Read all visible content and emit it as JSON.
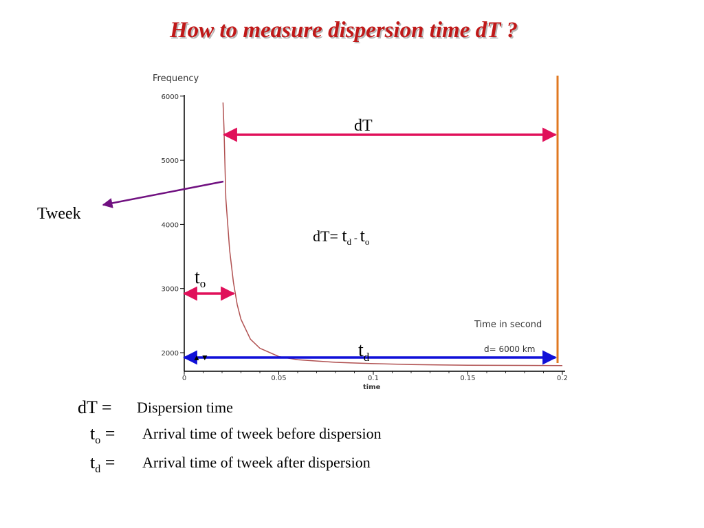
{
  "title": "How to measure dispersion time dT  ?",
  "chart_data": {
    "type": "line",
    "ylabel": "Frequency",
    "xlabel": "time",
    "axis_note_time": "Time in second",
    "axis_note_distance": "d= 6000 km",
    "xlim": [
      0,
      0.2
    ],
    "ylim": [
      1800,
      6000
    ],
    "x_ticks": [
      "0",
      "0.05",
      "0.1",
      "0.15",
      "0.2"
    ],
    "y_ticks": [
      "2000",
      "3000",
      "4000",
      "5000",
      "6000"
    ],
    "series": [
      {
        "x": [
          0.0205,
          0.021,
          0.022,
          0.024,
          0.026,
          0.028,
          0.03,
          0.035,
          0.04,
          0.05,
          0.06,
          0.08,
          0.1,
          0.12,
          0.15,
          0.2
        ],
        "y": [
          5900,
          5500,
          4400,
          3600,
          3100,
          2750,
          2520,
          2210,
          2070,
          1940,
          1890,
          1850,
          1830,
          1815,
          1805,
          1800
        ]
      }
    ],
    "color": "#b05050"
  },
  "annotations": {
    "dt_label": "dT",
    "tweek_label": "Tweek",
    "formula": {
      "lhs": "dT= ",
      "t1": "t",
      "s1": "d",
      "minus": " - ",
      "t2": "t",
      "s2": "o"
    },
    "to_label": {
      "t": "t",
      "sub": "o"
    },
    "td_label": {
      "t": "t",
      "sub": "d"
    }
  },
  "definitions": [
    {
      "sym": "dT",
      "sub": "",
      "eq": " =",
      "text": "Dispersion time"
    },
    {
      "sym": "t",
      "sub": "o",
      "eq": " =",
      "text": "Arrival time of tweek before dispersion"
    },
    {
      "sym": "t",
      "sub": "d",
      "eq": " =",
      "text": "Arrival time of tweek after dispersion"
    }
  ],
  "colors": {
    "title": "#c01818",
    "pink_arrow": "#e0105a",
    "blue_arrow": "#1010d8",
    "purple_arrow": "#701080",
    "orange_line": "#e07820",
    "curve": "#b05050"
  }
}
